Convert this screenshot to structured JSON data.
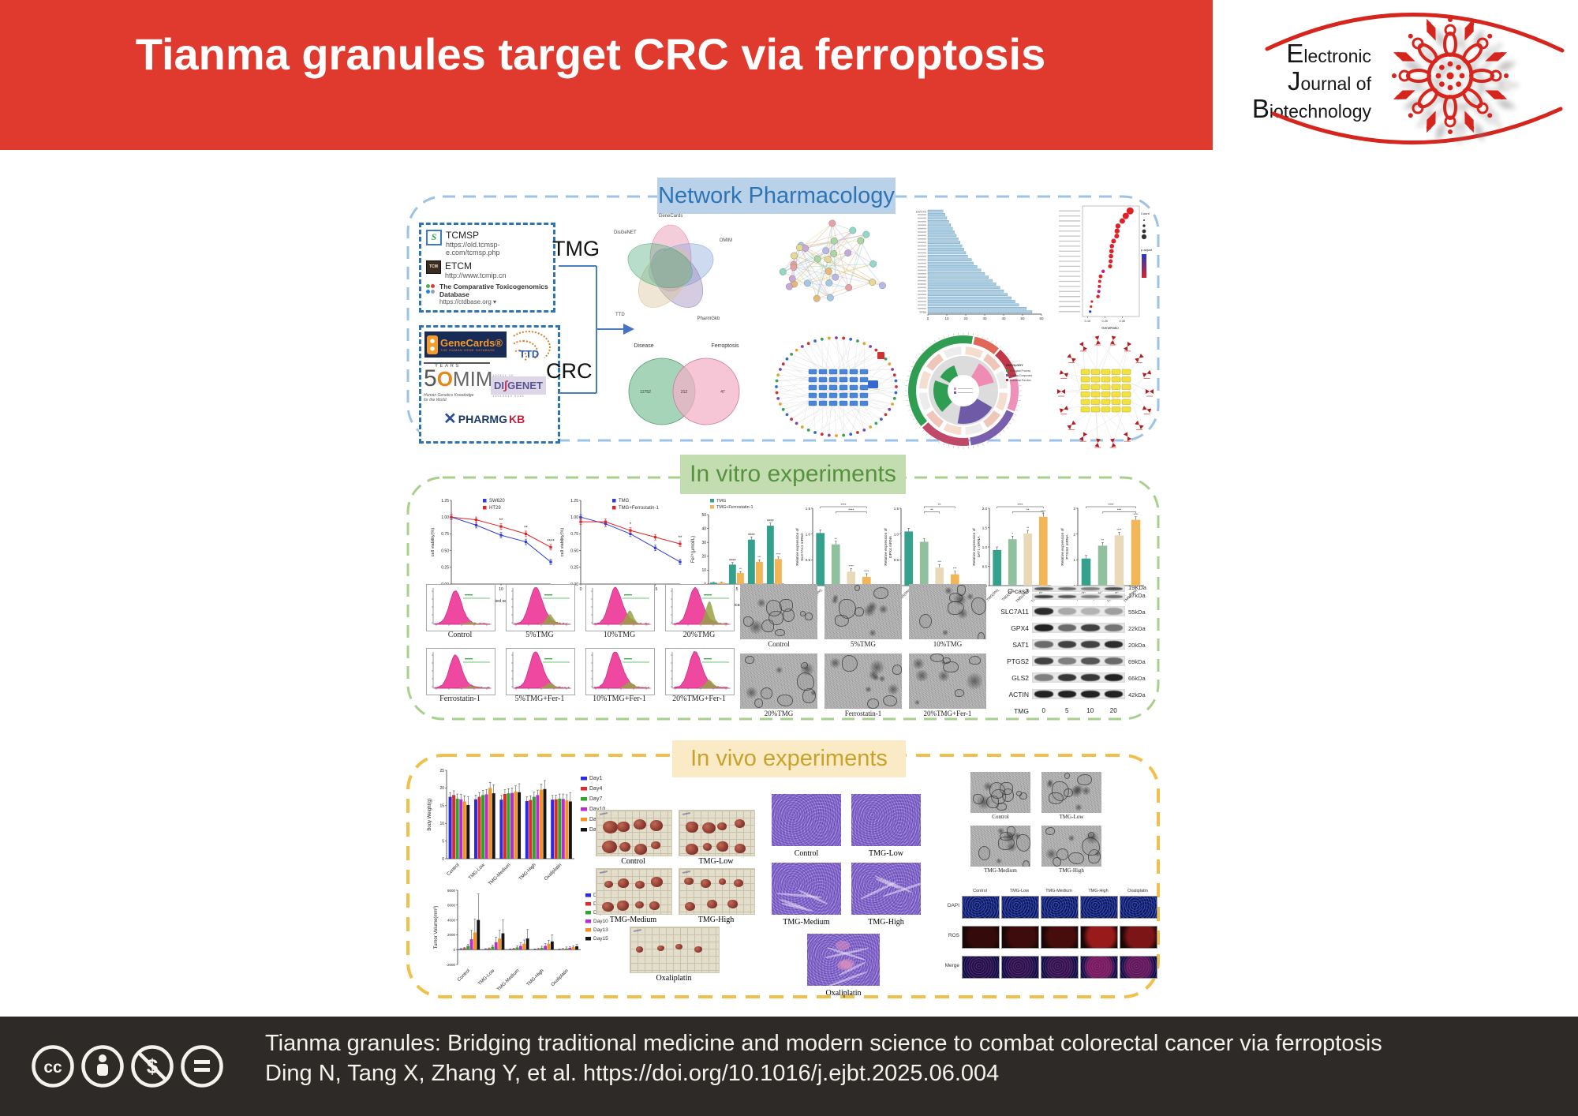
{
  "header": {
    "title": "Tianma granules target CRC via ferroptosis",
    "journal_lines": [
      "Electronic",
      "Journal of",
      "Biotechnology"
    ]
  },
  "sections": {
    "network": {
      "label": "Network Pharmacology"
    },
    "vitro": {
      "label": "In vitro experiments"
    },
    "vivo": {
      "label": "In vivo experiments"
    }
  },
  "network_inputs": {
    "tmg_label": "TMG",
    "crc_label": "CRC",
    "tmg_databases": [
      {
        "name": "TCMSP",
        "url": "https://old.tcmsp-e.com/tcmsp.php",
        "icon_glyph": "S"
      },
      {
        "name": "ETCM",
        "url": "http://www.tcmip.cn",
        "icon_glyph": "TCM"
      },
      {
        "name": "The Comparative Toxicogenomics Database",
        "url": "https://ctdbase.org ▾",
        "icon_glyph": ""
      }
    ],
    "crc_databases": {
      "genecards": {
        "title": "GeneCards®",
        "subtitle": "THE HUMAN GENE DATABASE"
      },
      "ttd": {
        "title": "TTD"
      },
      "omim": {
        "big5": "5",
        "years": "YEARS",
        "o": "O",
        "rest": "MIM",
        "tagline1": "Human Genetics Knowledge",
        "tagline2": "for the World"
      },
      "disgenet": {
        "part1": "DI",
        "slash": "∫",
        "part2": "GENET",
        "bits_top": "100111 10",
        "bits_bottom": "10010010   0110"
      },
      "pharmgkb": {
        "part1": "PHARMG",
        "part2": "KB"
      }
    }
  },
  "chart_data": [
    {
      "id": "venn5",
      "type": "venn",
      "sets": [
        "GeneCards",
        "DisGeNET",
        "OMIM",
        "TTD",
        "PharmGkb"
      ]
    },
    {
      "id": "ppi-network",
      "type": "network",
      "style": "ppi",
      "nodes": 30
    },
    {
      "id": "hub-bar",
      "type": "bar",
      "orientation": "horizontal",
      "xlim": [
        0,
        60
      ],
      "xticks": [
        0,
        10,
        20,
        30,
        40,
        50,
        60
      ],
      "top_gene": "DUOX2",
      "bottom_gene": "TP53",
      "values": [
        8,
        9,
        10,
        11,
        12,
        13,
        14,
        15,
        16,
        17,
        18,
        19,
        20,
        21,
        23,
        24,
        26,
        28,
        30,
        32,
        34,
        36,
        38,
        40,
        42,
        44,
        46,
        48,
        52,
        55
      ]
    },
    {
      "id": "kegg-dot",
      "type": "scatter",
      "xlabel": "GeneRatio",
      "xticks": [
        0.1,
        0.2,
        0.3
      ],
      "legend": [
        "Count",
        "p.adjust"
      ],
      "x": [
        0.345,
        0.32,
        0.3,
        0.275,
        0.27,
        0.268,
        0.25,
        0.24,
        0.238,
        0.235,
        0.233,
        0.23,
        0.19,
        0.175,
        0.17,
        0.168,
        0.165,
        0.16,
        0.125,
        0.12,
        0.115
      ],
      "size": [
        4.5,
        4,
        3.5,
        3.2,
        3.2,
        3,
        3,
        2.8,
        2.8,
        2.8,
        2.6,
        2.6,
        2.2,
        2.4,
        2,
        2,
        2,
        2.2,
        1.6,
        1.6,
        1.6
      ],
      "color": [
        "#e01f26",
        "#e01f26",
        "#e01f26",
        "#e01f26",
        "#e01f26",
        "#e01f26",
        "#e01f26",
        "#e01f26",
        "#e01f26",
        "#e01f26",
        "#e01f26",
        "#e01f26",
        "#b0209a",
        "#e01f26",
        "#e01f26",
        "#e01f26",
        "#b0209a",
        "#e01f26",
        "#e01f26",
        "#e01f26",
        "#2038d0"
      ]
    },
    {
      "id": "venn2",
      "type": "venn",
      "sets": [
        "Disease",
        "Ferroptosis"
      ],
      "values": [
        "12752",
        "212",
        "47"
      ]
    },
    {
      "id": "target-network",
      "type": "network",
      "style": "bipartite-radial"
    },
    {
      "id": "go-circos",
      "type": "circos",
      "legend_title": "ONTOLOGY",
      "legend": [
        "Biological Process",
        "Cellular Component",
        "Molecular Function"
      ]
    },
    {
      "id": "mirna-network",
      "type": "network",
      "style": "mirna-grid"
    },
    {
      "id": "viability-sw620",
      "type": "line",
      "xlabel": "medicated serum(%)",
      "ylabel": "cell viability(%)",
      "x": [
        0,
        5,
        10,
        15,
        20
      ],
      "ylim": [
        0,
        1.25
      ],
      "yticks": [
        0,
        0.25,
        0.5,
        0.75,
        1.0,
        1.25
      ],
      "series": [
        {
          "name": "SW620",
          "color": "#2f3bd4",
          "values": [
            1.0,
            0.88,
            0.73,
            0.63,
            0.33
          ]
        },
        {
          "name": "HT29",
          "color": "#e02326",
          "values": [
            1.0,
            0.96,
            0.86,
            0.75,
            0.55
          ]
        }
      ],
      "sig": [
        {
          "xi": 2,
          "label": "**"
        },
        {
          "xi": 3,
          "label": "**"
        },
        {
          "xi": 4,
          "label": "****"
        }
      ]
    },
    {
      "id": "viability-fer",
      "type": "line",
      "xlabel": "medicated serum(%)",
      "ylabel": "cell viability(%)",
      "x": [
        0,
        5,
        10,
        15,
        20
      ],
      "ylim": [
        0,
        1.25
      ],
      "yticks": [
        0,
        0.25,
        0.5,
        0.75,
        1.0,
        1.25
      ],
      "series": [
        {
          "name": "TMG",
          "color": "#2f3bd4",
          "values": [
            1.0,
            0.9,
            0.75,
            0.54,
            0.33
          ]
        },
        {
          "name": "TMG+Ferrostatin-1",
          "color": "#e02326",
          "values": [
            0.93,
            0.93,
            0.8,
            0.7,
            0.6
          ]
        }
      ],
      "sig": [
        {
          "xi": 2,
          "label": "*"
        },
        {
          "xi": 4,
          "label": "**"
        }
      ]
    },
    {
      "id": "fe-bars",
      "type": "bar",
      "grouped": true,
      "xlabel": "medicated serum (%)",
      "ylabel": "Fe²⁺(μmol/L)",
      "categories": [
        "0",
        "5",
        "10",
        "20"
      ],
      "ylim": [
        0,
        50
      ],
      "yticks": [
        0,
        10,
        20,
        30,
        40,
        50
      ],
      "series": [
        {
          "name": "TMG",
          "color": "#35a08c",
          "values": [
            1,
            14,
            32,
            42
          ],
          "err": [
            0.3,
            1.5,
            2,
            2
          ],
          "sig": [
            "",
            "####",
            "####",
            "####"
          ]
        },
        {
          "name": "TMG+Ferrostatin-1",
          "color": "#f2b557",
          "values": [
            1,
            8,
            16,
            18
          ],
          "err": [
            0.3,
            1,
            1.5,
            1.5
          ],
          "sig": [
            "",
            "**",
            "***",
            "****"
          ]
        }
      ]
    },
    {
      "id": "slc7a11",
      "type": "bar",
      "ylabel": "Relative expression of",
      "ylabel2": "SLC7A11 mRNA",
      "categories": [
        "TMG(0%)",
        "TMG(5%)",
        "TMG(10%)",
        "TMG(20%)"
      ],
      "ylim": [
        0,
        1.5
      ],
      "yticks": [
        0,
        0.5,
        1.0,
        1.5
      ],
      "values": [
        1.02,
        0.8,
        0.27,
        0.17
      ],
      "brackets": [
        {
          "from": 0,
          "to": 3,
          "label": "****"
        },
        {
          "from": 1,
          "to": 3,
          "label": "****"
        }
      ],
      "barsig": [
        "",
        "**",
        "****",
        "****"
      ]
    },
    {
      "id": "gpx4",
      "type": "bar",
      "ylabel": "Relative expression of",
      "ylabel2": "GPX4 mRNA",
      "categories": [
        "TMG(0%)",
        "TMG(5%)",
        "TMG(10%)",
        "TMG(20%)"
      ],
      "ylim": [
        0,
        1.5
      ],
      "yticks": [
        0,
        0.5,
        1.0,
        1.5
      ],
      "values": [
        1.05,
        0.85,
        0.35,
        0.22
      ],
      "brackets": [
        {
          "from": 1,
          "to": 3,
          "label": "**"
        },
        {
          "from": 1,
          "to": 2,
          "label": "**"
        }
      ],
      "barsig": [
        "",
        "",
        "***",
        "***"
      ]
    },
    {
      "id": "sat1",
      "type": "bar",
      "ylabel": "Relative expression of",
      "ylabel2": "SAT1 mRNA",
      "categories": [
        "TMG(0%)",
        "TMG(5%)",
        "TMG(10%)",
        "TMG(20%)"
      ],
      "ylim": [
        0,
        2.0
      ],
      "yticks": [
        0,
        0.5,
        1.0,
        1.5,
        2.0
      ],
      "values": [
        0.92,
        1.2,
        1.35,
        1.78
      ],
      "brackets": [
        {
          "from": 0,
          "to": 3,
          "label": "****"
        },
        {
          "from": 1,
          "to": 3,
          "label": "**"
        }
      ],
      "barsig": [
        "",
        "*",
        "**",
        "****"
      ]
    },
    {
      "id": "ptgs2",
      "type": "bar",
      "ylabel": "Relative expression of",
      "ylabel2": "PTGS2 mRNA",
      "categories": [
        "TMG(0%)",
        "TMG(5%)",
        "TMG(10%)",
        "TMG(20%)"
      ],
      "ylim": [
        0,
        3
      ],
      "yticks": [
        0,
        1,
        2,
        3
      ],
      "values": [
        1.05,
        1.55,
        1.95,
        2.55
      ],
      "brackets": [
        {
          "from": 0,
          "to": 3,
          "label": "****"
        },
        {
          "from": 1,
          "to": 3,
          "label": "***"
        }
      ],
      "barsig": [
        "",
        "**",
        "****",
        "****"
      ]
    },
    {
      "id": "flow",
      "type": "flow-cytometry",
      "panels": [
        "Control",
        "5%TMG",
        "10%TMG",
        "20%TMG",
        "Ferrostatin-1",
        "5%TMG+Fer-1",
        "10%TMG+Fer-1",
        "20%TMG+Fer-1"
      ],
      "green_fraction": [
        0.06,
        0.35,
        0.5,
        0.85,
        0.06,
        0.18,
        0.22,
        0.3
      ]
    },
    {
      "id": "em-vitro",
      "type": "image-grid",
      "style": "electron-microscopy",
      "panels": [
        "Control",
        "5%TMG",
        "10%TMG",
        "20%TMG",
        "Ferrostatin-1",
        "20%TMG+Fer-1"
      ]
    },
    {
      "id": "blot",
      "type": "western-blot",
      "lane_header": "TMG",
      "lanes": [
        "0",
        "5",
        "10",
        "20"
      ],
      "rows": [
        {
          "protein": "C-cas3",
          "kda": "19KDa",
          "kda2": "17kDa",
          "bands": [
            0.7,
            0.6,
            0.5,
            0.75
          ],
          "bands2": [
            0.8,
            0.7,
            0.5,
            0.6
          ]
        },
        {
          "protein": "SLC7A11",
          "kda": "55kDa",
          "bands": [
            0.9,
            0.3,
            0.25,
            0.35
          ]
        },
        {
          "protein": "GPX4",
          "kda": "22kDa",
          "bands": [
            0.95,
            0.6,
            0.8,
            0.55
          ]
        },
        {
          "protein": "SAT1",
          "kda": "20kDa",
          "bands": [
            0.6,
            0.8,
            0.8,
            0.9
          ]
        },
        {
          "protein": "PTGS2",
          "kda": "69kDa",
          "bands": [
            0.8,
            0.5,
            0.7,
            0.6
          ]
        },
        {
          "protein": "GLS2",
          "kda": "66kDa",
          "bands": [
            0.5,
            0.85,
            0.85,
            0.95
          ]
        },
        {
          "protein": "ACTIN",
          "kda": "42kDa",
          "bands": [
            0.95,
            0.95,
            0.95,
            0.95
          ]
        }
      ]
    },
    {
      "id": "body-weight",
      "type": "bar",
      "grouped": true,
      "ylabel": "Body Weight(g)",
      "ylim": [
        0,
        25
      ],
      "yticks": [
        0,
        5,
        10,
        15,
        20,
        25
      ],
      "categories": [
        "Control",
        "TMG-Low",
        "TMG-Medium",
        "TMG-High",
        "Oxaliplatin"
      ],
      "series": [
        {
          "name": "Day1",
          "color": "#2a2ae0",
          "values": [
            17.5,
            16.8,
            16.7,
            16.3,
            16.7
          ],
          "err": 1.2
        },
        {
          "name": "Day4",
          "color": "#e02a2a",
          "values": [
            18,
            17.5,
            18.3,
            16.6,
            16.8
          ],
          "err": 1.2
        },
        {
          "name": "Day7",
          "color": "#2aa62a",
          "values": [
            17,
            18,
            18.5,
            17.5,
            17
          ],
          "err": 1.3
        },
        {
          "name": "Day10",
          "color": "#bb2ad0",
          "values": [
            16.8,
            18.2,
            18.6,
            18,
            16.9
          ],
          "err": 1.4
        },
        {
          "name": "Day13",
          "color": "#f5921e",
          "values": [
            16.2,
            20,
            19,
            19.5,
            16.5
          ],
          "err": 1.6
        },
        {
          "name": "Day15",
          "color": "#151515",
          "values": [
            15.2,
            18.5,
            18.8,
            19.7,
            16.2
          ],
          "err": 2.4
        }
      ]
    },
    {
      "id": "tumor-volume",
      "type": "bar",
      "grouped": true,
      "ylabel": "Tumor Volume(mm³)",
      "ylim": [
        -2000,
        8000
      ],
      "yticks": [
        -2000,
        0,
        2000,
        4000,
        6000,
        8000
      ],
      "categories": [
        "Control",
        "TMG-Low",
        "TMG-Medium",
        "TMG-High",
        "Oxaliplatin"
      ],
      "series": [
        {
          "name": "Day1",
          "color": "#2a2ae0",
          "values": [
            100,
            80,
            60,
            50,
            40
          ],
          "err": 50
        },
        {
          "name": "Day4",
          "color": "#e02a2a",
          "values": [
            200,
            150,
            120,
            100,
            80
          ],
          "err": 80
        },
        {
          "name": "Day7",
          "color": "#2aa62a",
          "values": [
            500,
            400,
            300,
            250,
            150
          ],
          "err": 200
        },
        {
          "name": "Day10",
          "color": "#bb2ad0",
          "values": [
            1400,
            1000,
            500,
            500,
            250
          ],
          "err": [
            1200,
            700,
            400,
            300,
            120
          ]
        },
        {
          "name": "Day13",
          "color": "#f5921e",
          "values": [
            2300,
            1500,
            800,
            800,
            350
          ],
          "err": [
            1800,
            1100,
            500,
            450,
            150
          ]
        },
        {
          "name": "Day15",
          "color": "#151515",
          "values": [
            4000,
            2200,
            1500,
            1100,
            450
          ],
          "err": [
            3500,
            1800,
            1200,
            900,
            250
          ]
        }
      ]
    },
    {
      "id": "tumor-photos",
      "type": "image-grid",
      "style": "tumor-photo",
      "panels": [
        "Control",
        "TMG-Low",
        "TMG-Medium",
        "TMG-High",
        "Oxaliplatin"
      ]
    },
    {
      "id": "he",
      "type": "image-grid",
      "style": "he-stain",
      "panels": [
        "Control",
        "TMG-Low",
        "TMG-Medium",
        "TMG-High",
        "Oxaliplatin"
      ]
    },
    {
      "id": "em-vivo",
      "type": "image-grid",
      "style": "electron-microscopy",
      "panels": [
        "Control",
        "TMG-Low",
        "TMG-Medium",
        "TMG-High"
      ]
    },
    {
      "id": "fluor",
      "type": "image-grid",
      "style": "fluorescence",
      "columns": [
        "Control",
        "TMG-Low",
        "TMG-Medium",
        "TMG-High",
        "Oxaliplatin"
      ],
      "rows": [
        "DAPI",
        "ROS",
        "Merge"
      ],
      "ros_intensity": [
        0.15,
        0.2,
        0.25,
        0.7,
        0.55
      ]
    }
  ],
  "footer": {
    "line1": "Tianma granules: Bridging traditional medicine and modern science to combat colorectal cancer via ferroptosis",
    "line2": "Ding N, Tang X, Zhang Y, et al. https://doi.org/10.1016/j.ejbt.2025.06.004",
    "glyph_cc": "cc",
    "glyph_nc": "$"
  },
  "colors": {
    "banner_red": "#e0392e",
    "footer_bg": "#2d2a28",
    "network_blue": "#2e74b5",
    "vitro_green": "#55913e",
    "vivo_gold": "#c9a22b"
  }
}
